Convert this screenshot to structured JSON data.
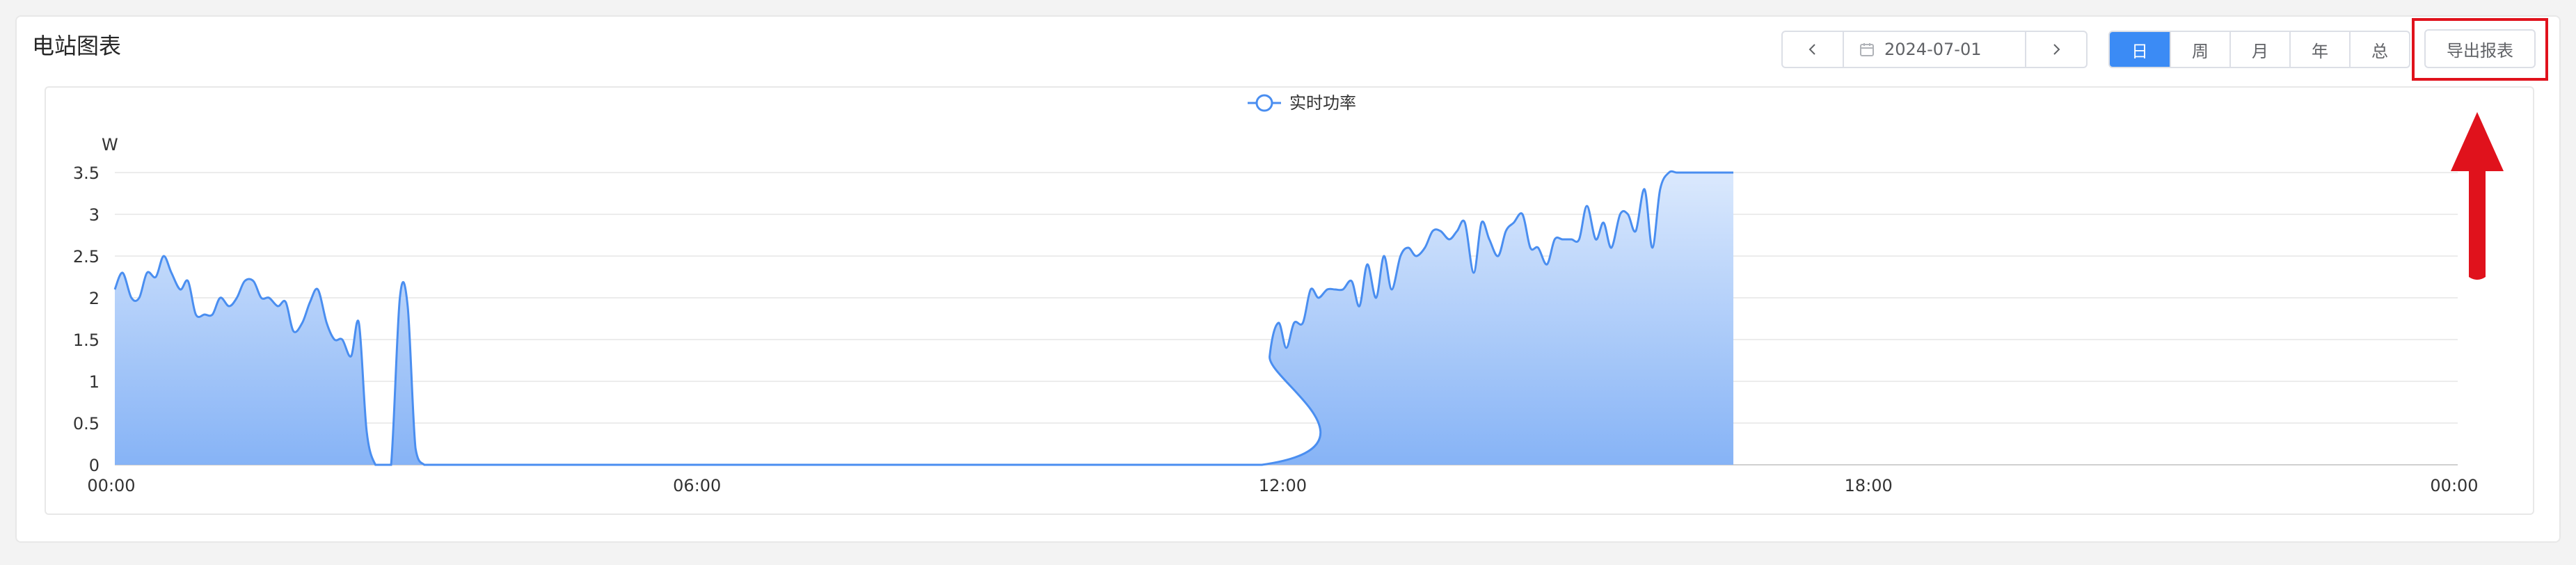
{
  "header": {
    "title": "电站图表"
  },
  "date_nav": {
    "date": "2024-07-01",
    "prev_icon": "chevron-left-icon",
    "next_icon": "chevron-right-icon",
    "calendar_icon": "calendar-icon"
  },
  "period_tabs": [
    {
      "label": "日",
      "active": true
    },
    {
      "label": "周",
      "active": false
    },
    {
      "label": "月",
      "active": false
    },
    {
      "label": "年",
      "active": false
    },
    {
      "label": "总",
      "active": false
    }
  ],
  "toolbar": {
    "export_label": "导出报表"
  },
  "colors": {
    "accent": "#3b8bf5",
    "line": "#4a8ef0",
    "annotation": "#e0121c"
  },
  "chart_data": {
    "type": "area",
    "legend": [
      "实时功率"
    ],
    "legend_placement": "top-center",
    "ylabel": "W",
    "ylim": [
      0,
      3.5
    ],
    "yticks": [
      "0",
      "0.5",
      "1",
      "1.5",
      "2",
      "2.5",
      "3",
      "3.5"
    ],
    "xlim": [
      0,
      24
    ],
    "xticks": [
      "00:00",
      "06:00",
      "12:00",
      "18:00",
      "00:00"
    ],
    "grid": true,
    "series": [
      {
        "name": "实时功率",
        "x": [
          0.0,
          0.08,
          0.17,
          0.25,
          0.33,
          0.42,
          0.5,
          0.58,
          0.67,
          0.75,
          0.83,
          0.92,
          1.0,
          1.08,
          1.17,
          1.25,
          1.33,
          1.42,
          1.5,
          1.58,
          1.67,
          1.75,
          1.83,
          1.92,
          2.0,
          2.08,
          2.17,
          2.25,
          2.33,
          2.42,
          2.5,
          2.58,
          2.67,
          2.75,
          2.83,
          2.92,
          3.0,
          3.08,
          3.17,
          3.25,
          3.33,
          3.42,
          3.5,
          3.58,
          3.67,
          3.75,
          3.83,
          3.92,
          11.75,
          11.83,
          11.92,
          12.0,
          12.08,
          12.17,
          12.25,
          12.33,
          12.42,
          12.5,
          12.58,
          12.67,
          12.75,
          12.83,
          12.92,
          13.0,
          13.08,
          13.17,
          13.25,
          13.33,
          13.42,
          13.5,
          13.58,
          13.67,
          13.75,
          13.83,
          13.92,
          14.0,
          14.08,
          14.17,
          14.25,
          14.33,
          14.42,
          14.5,
          14.58,
          14.67,
          14.75,
          14.83,
          14.92,
          15.0,
          15.08,
          15.17,
          15.25,
          15.33,
          15.42,
          15.5,
          15.58,
          15.67,
          15.75,
          15.83,
          15.92,
          16.0,
          16.08,
          16.17,
          16.25,
          16.33,
          16.42,
          16.5,
          16.58
        ],
        "values": [
          2.1,
          2.3,
          2.0,
          2.0,
          2.3,
          2.25,
          2.5,
          2.3,
          2.1,
          2.2,
          1.8,
          1.8,
          1.8,
          2.0,
          1.9,
          2.0,
          2.2,
          2.2,
          2.0,
          2.0,
          1.9,
          1.95,
          1.6,
          1.7,
          1.95,
          2.1,
          1.7,
          1.5,
          1.5,
          1.3,
          1.7,
          0.4,
          0.0,
          0.0,
          0.0,
          2.0,
          1.9,
          0.2,
          0.0,
          0.0,
          0.0,
          0.0,
          0.0,
          0.0,
          0.0,
          0.0,
          0.0,
          0.0,
          0.0,
          1.3,
          1.7,
          1.4,
          1.7,
          1.7,
          2.1,
          2.0,
          2.1,
          2.1,
          2.1,
          2.2,
          1.9,
          2.4,
          2.0,
          2.5,
          2.1,
          2.5,
          2.6,
          2.5,
          2.6,
          2.8,
          2.8,
          2.7,
          2.8,
          2.9,
          2.3,
          2.9,
          2.7,
          2.5,
          2.8,
          2.9,
          3.0,
          2.6,
          2.6,
          2.4,
          2.7,
          2.7,
          2.7,
          2.7,
          3.1,
          2.7,
          2.9,
          2.6,
          3.0,
          3.0,
          2.8,
          3.3,
          2.6,
          3.3,
          3.5,
          3.5,
          3.5,
          3.5,
          3.5,
          3.5,
          3.5,
          3.5,
          3.5
        ]
      }
    ]
  }
}
